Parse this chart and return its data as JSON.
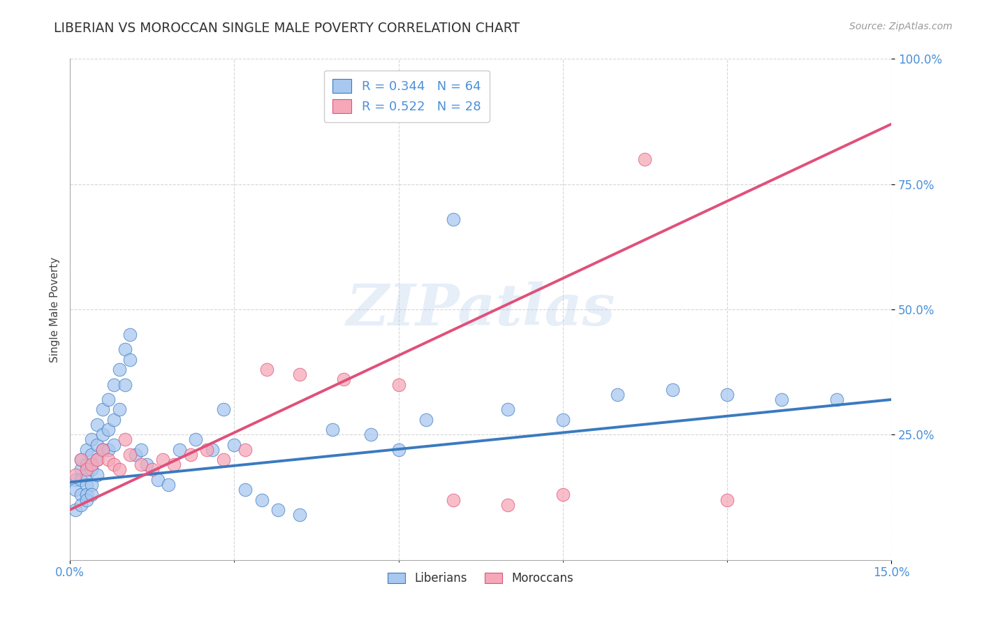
{
  "title": "LIBERIAN VS MOROCCAN SINGLE MALE POVERTY CORRELATION CHART",
  "source": "Source: ZipAtlas.com",
  "ylabel": "Single Male Poverty",
  "xlim": [
    0.0,
    0.15
  ],
  "ylim": [
    0.0,
    1.0
  ],
  "liberian_color": "#a8c8f0",
  "moroccan_color": "#f5a8b8",
  "line_liberian_color": "#3a7abf",
  "line_moroccan_color": "#e0507a",
  "watermark": "ZIPatlas",
  "legend_R_liberian": "R = 0.344",
  "legend_N_liberian": "N = 64",
  "legend_R_moroccan": "R = 0.522",
  "legend_N_moroccan": "N = 28",
  "liberian_x": [
    0.001,
    0.001,
    0.001,
    0.002,
    0.002,
    0.002,
    0.002,
    0.002,
    0.003,
    0.003,
    0.003,
    0.003,
    0.003,
    0.003,
    0.004,
    0.004,
    0.004,
    0.004,
    0.004,
    0.005,
    0.005,
    0.005,
    0.005,
    0.006,
    0.006,
    0.006,
    0.007,
    0.007,
    0.007,
    0.008,
    0.008,
    0.008,
    0.009,
    0.009,
    0.01,
    0.01,
    0.011,
    0.011,
    0.012,
    0.013,
    0.014,
    0.016,
    0.018,
    0.02,
    0.023,
    0.026,
    0.028,
    0.03,
    0.032,
    0.035,
    0.038,
    0.042,
    0.048,
    0.055,
    0.06,
    0.065,
    0.07,
    0.08,
    0.09,
    0.1,
    0.11,
    0.12,
    0.13,
    0.14
  ],
  "liberian_y": [
    0.16,
    0.14,
    0.1,
    0.18,
    0.2,
    0.16,
    0.13,
    0.11,
    0.22,
    0.19,
    0.17,
    0.15,
    0.13,
    0.12,
    0.24,
    0.21,
    0.18,
    0.15,
    0.13,
    0.27,
    0.23,
    0.2,
    0.17,
    0.3,
    0.25,
    0.22,
    0.32,
    0.26,
    0.22,
    0.35,
    0.28,
    0.23,
    0.38,
    0.3,
    0.42,
    0.35,
    0.4,
    0.45,
    0.21,
    0.22,
    0.19,
    0.16,
    0.15,
    0.22,
    0.24,
    0.22,
    0.3,
    0.23,
    0.14,
    0.12,
    0.1,
    0.09,
    0.26,
    0.25,
    0.22,
    0.28,
    0.68,
    0.3,
    0.28,
    0.33,
    0.34,
    0.33,
    0.32,
    0.32
  ],
  "moroccan_x": [
    0.001,
    0.002,
    0.003,
    0.004,
    0.005,
    0.006,
    0.007,
    0.008,
    0.009,
    0.01,
    0.011,
    0.013,
    0.015,
    0.017,
    0.019,
    0.022,
    0.025,
    0.028,
    0.032,
    0.036,
    0.042,
    0.05,
    0.06,
    0.07,
    0.08,
    0.09,
    0.105,
    0.12
  ],
  "moroccan_y": [
    0.17,
    0.2,
    0.18,
    0.19,
    0.2,
    0.22,
    0.2,
    0.19,
    0.18,
    0.24,
    0.21,
    0.19,
    0.18,
    0.2,
    0.19,
    0.21,
    0.22,
    0.2,
    0.22,
    0.38,
    0.37,
    0.36,
    0.35,
    0.12,
    0.11,
    0.13,
    0.8,
    0.12
  ],
  "line_liberian_x0": 0.0,
  "line_liberian_y0": 0.155,
  "line_liberian_x1": 0.15,
  "line_liberian_y1": 0.32,
  "line_moroccan_x0": 0.0,
  "line_moroccan_y0": 0.1,
  "line_moroccan_x1": 0.15,
  "line_moroccan_y1": 0.87
}
